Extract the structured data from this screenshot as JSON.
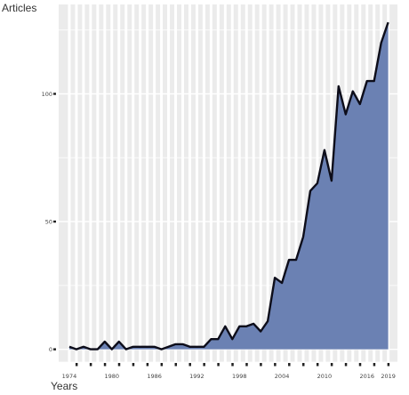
{
  "chart_data": {
    "type": "area",
    "ylabel": "Articles",
    "xlabel": "Years",
    "x_tick_labels": [
      "1974",
      "1980",
      "1986",
      "1992",
      "1998",
      "2004",
      "2010",
      "2016",
      "2019"
    ],
    "y_tick_labels": [
      "0",
      "50",
      "100"
    ],
    "y_ticks": [
      0,
      50,
      100
    ],
    "xlim": [
      1972.5,
      2020.3
    ],
    "ylim": [
      -5,
      135
    ],
    "grid": true,
    "colors": {
      "fill": "#6b81b3",
      "line": "#0d0d1a",
      "panel": "#ebebeb",
      "gridline": "#ffffff"
    },
    "years": [
      1974,
      1975,
      1976,
      1977,
      1978,
      1979,
      1980,
      1981,
      1982,
      1983,
      1984,
      1985,
      1986,
      1987,
      1988,
      1989,
      1990,
      1991,
      1992,
      1993,
      1994,
      1995,
      1996,
      1997,
      1998,
      1999,
      2000,
      2001,
      2002,
      2003,
      2004,
      2005,
      2006,
      2007,
      2008,
      2009,
      2010,
      2011,
      2012,
      2013,
      2014,
      2015,
      2016,
      2017,
      2018,
      2019
    ],
    "values": [
      1,
      0,
      1,
      0,
      0,
      3,
      0,
      3,
      0,
      1,
      1,
      1,
      1,
      0,
      1,
      2,
      2,
      1,
      1,
      1,
      4,
      4,
      9,
      4,
      9,
      9,
      10,
      7,
      11,
      28,
      26,
      35,
      35,
      44,
      62,
      65,
      78,
      66,
      103,
      92,
      101,
      96,
      105,
      105,
      120,
      128
    ]
  }
}
